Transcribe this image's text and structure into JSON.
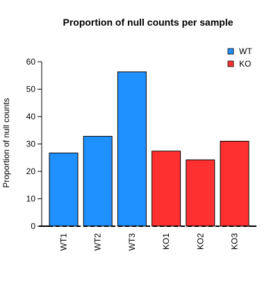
{
  "chart_data": {
    "type": "bar",
    "title": "Proportion of null counts per sample",
    "xlabel": "",
    "ylabel": "Proportion of null counts",
    "categories": [
      "WT1",
      "WT2",
      "WT3",
      "KO1",
      "KO2",
      "KO3"
    ],
    "values": [
      26.7,
      32.8,
      56.3,
      27.4,
      24.2,
      31.0
    ],
    "group": [
      "WT",
      "WT",
      "WT",
      "KO",
      "KO",
      "KO"
    ],
    "ylim": [
      0,
      60
    ],
    "yticks": [
      0,
      10,
      20,
      30,
      40,
      50,
      60
    ],
    "grid": false,
    "legend": {
      "placement": "top-right",
      "entries": [
        {
          "label": "WT",
          "color": "#1e90ff"
        },
        {
          "label": "KO",
          "color": "#ff3030"
        }
      ]
    },
    "colors": {
      "WT": "#1e90ff",
      "KO": "#ff3030"
    }
  }
}
